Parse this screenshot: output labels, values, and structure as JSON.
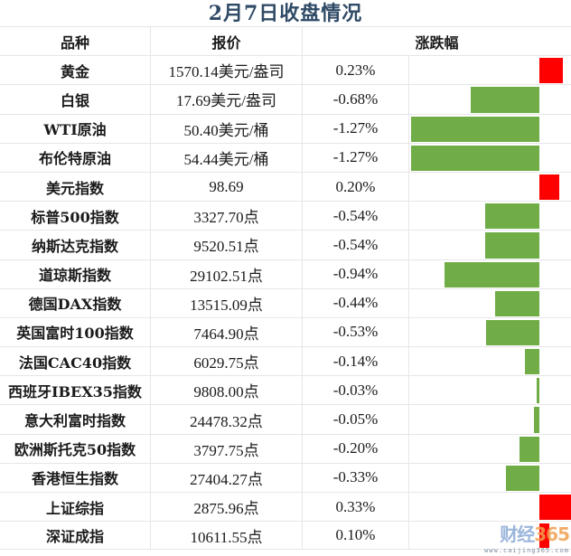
{
  "title": "2月7日收盘情况",
  "header": {
    "name": "品种",
    "price": "报价",
    "change": "涨跌幅"
  },
  "rows": [
    {
      "name": "黄金",
      "price": "1570.14美元/盎司",
      "pct": "0.23%",
      "value": 0.23
    },
    {
      "name": "白银",
      "price": "17.69美元/盎司",
      "pct": "-0.68%",
      "value": -0.68
    },
    {
      "name": "WTI原油",
      "price": "50.40美元/桶",
      "pct": "-1.27%",
      "value": -1.27
    },
    {
      "name": "布伦特原油",
      "price": "54.44美元/桶",
      "pct": "-1.27%",
      "value": -1.27
    },
    {
      "name": "美元指数",
      "price": "98.69",
      "pct": "0.20%",
      "value": 0.2
    },
    {
      "name": "标普500指数",
      "price": "3327.70点",
      "pct": "-0.54%",
      "value": -0.54
    },
    {
      "name": "纳斯达克指数",
      "price": "9520.51点",
      "pct": "-0.54%",
      "value": -0.54
    },
    {
      "name": "道琼斯指数",
      "price": "29102.51点",
      "pct": "-0.94%",
      "value": -0.94
    },
    {
      "name": "德国DAX指数",
      "price": "13515.09点",
      "pct": "-0.44%",
      "value": -0.44
    },
    {
      "name": "英国富时100指数",
      "price": "7464.90点",
      "pct": "-0.53%",
      "value": -0.53
    },
    {
      "name": "法国CAC40指数",
      "price": "6029.75点",
      "pct": "-0.14%",
      "value": -0.14
    },
    {
      "name": "西班牙IBEX35指数",
      "price": "9808.00点",
      "pct": "-0.03%",
      "value": -0.03
    },
    {
      "name": "意大利富时指数",
      "price": "24478.32点",
      "pct": "-0.05%",
      "value": -0.05
    },
    {
      "name": "欧洲斯托克50指数",
      "price": "3797.75点",
      "pct": "-0.20%",
      "value": -0.2
    },
    {
      "name": "香港恒生指数",
      "price": "27404.27点",
      "pct": "-0.33%",
      "value": -0.33
    },
    {
      "name": "上证综指",
      "price": "2875.96点",
      "pct": "0.33%",
      "value": 0.33
    },
    {
      "name": "深证成指",
      "price": "10611.55点",
      "pct": "0.10%",
      "value": 0.1
    }
  ],
  "colors": {
    "positive": "#ff0000",
    "negative": "#70ad47",
    "title": "#2f4a66"
  },
  "watermark": {
    "main_a": "财经",
    "main_b": "365",
    "sub": "www.caijing365.com"
  },
  "chart_data": {
    "type": "table",
    "title": "2月7日收盘情况",
    "columns": [
      "品种",
      "报价",
      "涨跌幅"
    ],
    "categories": [
      "黄金",
      "白银",
      "WTI原油",
      "布伦特原油",
      "美元指数",
      "标普500指数",
      "纳斯达克指数",
      "道琼斯指数",
      "德国DAX指数",
      "英国富时100指数",
      "法国CAC40指数",
      "西班牙IBEX35指数",
      "意大利富时指数",
      "欧洲斯托克50指数",
      "香港恒生指数",
      "上证综指",
      "深证成指"
    ],
    "prices": [
      "1570.14美元/盎司",
      "17.69美元/盎司",
      "50.40美元/桶",
      "54.44美元/桶",
      "98.69",
      "3327.70点",
      "9520.51点",
      "29102.51点",
      "13515.09点",
      "7464.90点",
      "6029.75点",
      "9808.00点",
      "24478.32点",
      "3797.75点",
      "27404.27点",
      "2875.96点",
      "10611.55点"
    ],
    "series": [
      {
        "name": "涨跌幅(%)",
        "values": [
          0.23,
          -0.68,
          -1.27,
          -1.27,
          0.2,
          -0.54,
          -0.54,
          -0.94,
          -0.44,
          -0.53,
          -0.14,
          -0.03,
          -0.05,
          -0.2,
          -0.33,
          0.33,
          0.1
        ]
      }
    ],
    "bar_style": "in-cell data bars, green for negative, red for positive, zero axis near right edge"
  }
}
